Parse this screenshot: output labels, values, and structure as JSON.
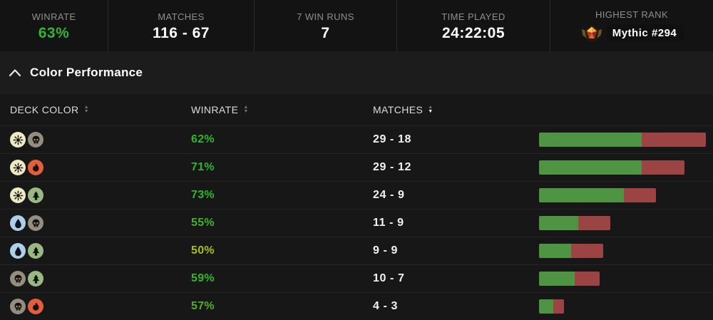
{
  "stats_bar": {
    "items": [
      {
        "label": "WINRATE",
        "value": "63%",
        "value_color": "#33b533"
      },
      {
        "label": "MATCHES",
        "value": "116 - 67",
        "value_color": "#ffffff"
      },
      {
        "label": "7 WIN RUNS",
        "value": "7",
        "value_color": "#ffffff"
      },
      {
        "label": "TIME PLAYED",
        "value": "24:22:05",
        "value_color": "#ffffff"
      },
      {
        "label": "HIGHEST RANK",
        "value": "Mythic #294",
        "value_color": "#ffffff",
        "icon": "mythic-rank-badge"
      }
    ]
  },
  "section": {
    "title": "Color Performance",
    "collapse_icon": "chevron-up-icon"
  },
  "table": {
    "columns": [
      {
        "label": "DECK COLOR",
        "sort": "none"
      },
      {
        "label": "WINRATE",
        "sort": "none"
      },
      {
        "label": "MATCHES",
        "sort": "desc"
      }
    ],
    "bar_colors": {
      "win": "#4f9443",
      "loss": "#9c4343"
    },
    "rows": [
      {
        "colors": [
          "white",
          "black"
        ],
        "winrate": "62%",
        "winrate_color": "#2fb52f",
        "matches": "29 - 18",
        "wins": 29,
        "losses": 18
      },
      {
        "colors": [
          "white",
          "red"
        ],
        "winrate": "71%",
        "winrate_color": "#2fb52f",
        "matches": "29 - 12",
        "wins": 29,
        "losses": 12
      },
      {
        "colors": [
          "white",
          "green"
        ],
        "winrate": "73%",
        "winrate_color": "#2bb92b",
        "matches": "24 - 9",
        "wins": 24,
        "losses": 9
      },
      {
        "colors": [
          "blue",
          "black"
        ],
        "winrate": "55%",
        "winrate_color": "#46b02b",
        "matches": "11 - 9",
        "wins": 11,
        "losses": 9
      },
      {
        "colors": [
          "blue",
          "green"
        ],
        "winrate": "50%",
        "winrate_color": "#a9bf17",
        "matches": "9 - 9",
        "wins": 9,
        "losses": 9
      },
      {
        "colors": [
          "black",
          "green"
        ],
        "winrate": "59%",
        "winrate_color": "#3bb32d",
        "matches": "10 - 7",
        "wins": 10,
        "losses": 7
      },
      {
        "colors": [
          "black",
          "red"
        ],
        "winrate": "57%",
        "winrate_color": "#52ae2a",
        "matches": "4 - 3",
        "wins": 4,
        "losses": 3
      }
    ]
  }
}
